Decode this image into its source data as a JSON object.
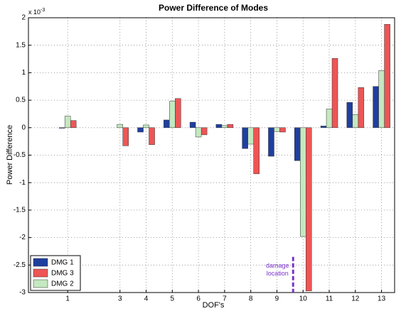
{
  "chart_data": {
    "type": "bar",
    "title": "Power Difference of Modes",
    "x_label": "DOF's",
    "y_label": "Power Difference",
    "y_multiplier": {
      "base": "x 10",
      "exponent": "-3"
    },
    "x": [
      1,
      3,
      4,
      5,
      6,
      7,
      8,
      9,
      10,
      11,
      12,
      13
    ],
    "xlim": [
      -0.5,
      13.5
    ],
    "xticks": [
      1,
      3,
      4,
      5,
      6,
      7,
      8,
      9,
      10,
      11,
      12,
      13
    ],
    "ylim": [
      -3,
      2
    ],
    "yticks": [
      -3,
      -2.5,
      -2,
      -1.5,
      -1,
      -0.5,
      0,
      0.5,
      1,
      1.5,
      2
    ],
    "grid": true,
    "legend": "lower left",
    "series": [
      {
        "name": "DMG 1",
        "color": "#1f3f9f",
        "values": [
          -0.01,
          0,
          -0.08,
          0.14,
          0.1,
          0.06,
          -0.38,
          -0.52,
          -0.6,
          0.03,
          0.46,
          0.75
        ]
      },
      {
        "name": "DMG 3",
        "color": "#ee5555",
        "values": [
          0.13,
          -0.33,
          -0.31,
          0.53,
          -0.13,
          0.06,
          -0.84,
          -0.08,
          -2.97,
          1.26,
          0.73,
          1.88
        ]
      },
      {
        "name": "DMG 2",
        "color": "#c4e8c0",
        "values": [
          0.21,
          0.06,
          0.05,
          0.48,
          -0.17,
          0.04,
          -0.3,
          -0.07,
          -1.98,
          0.34,
          0.24,
          1.04
        ]
      }
    ],
    "annotation": {
      "lines": [
        "damage",
        "location"
      ],
      "color": "#7a33c8"
    }
  }
}
